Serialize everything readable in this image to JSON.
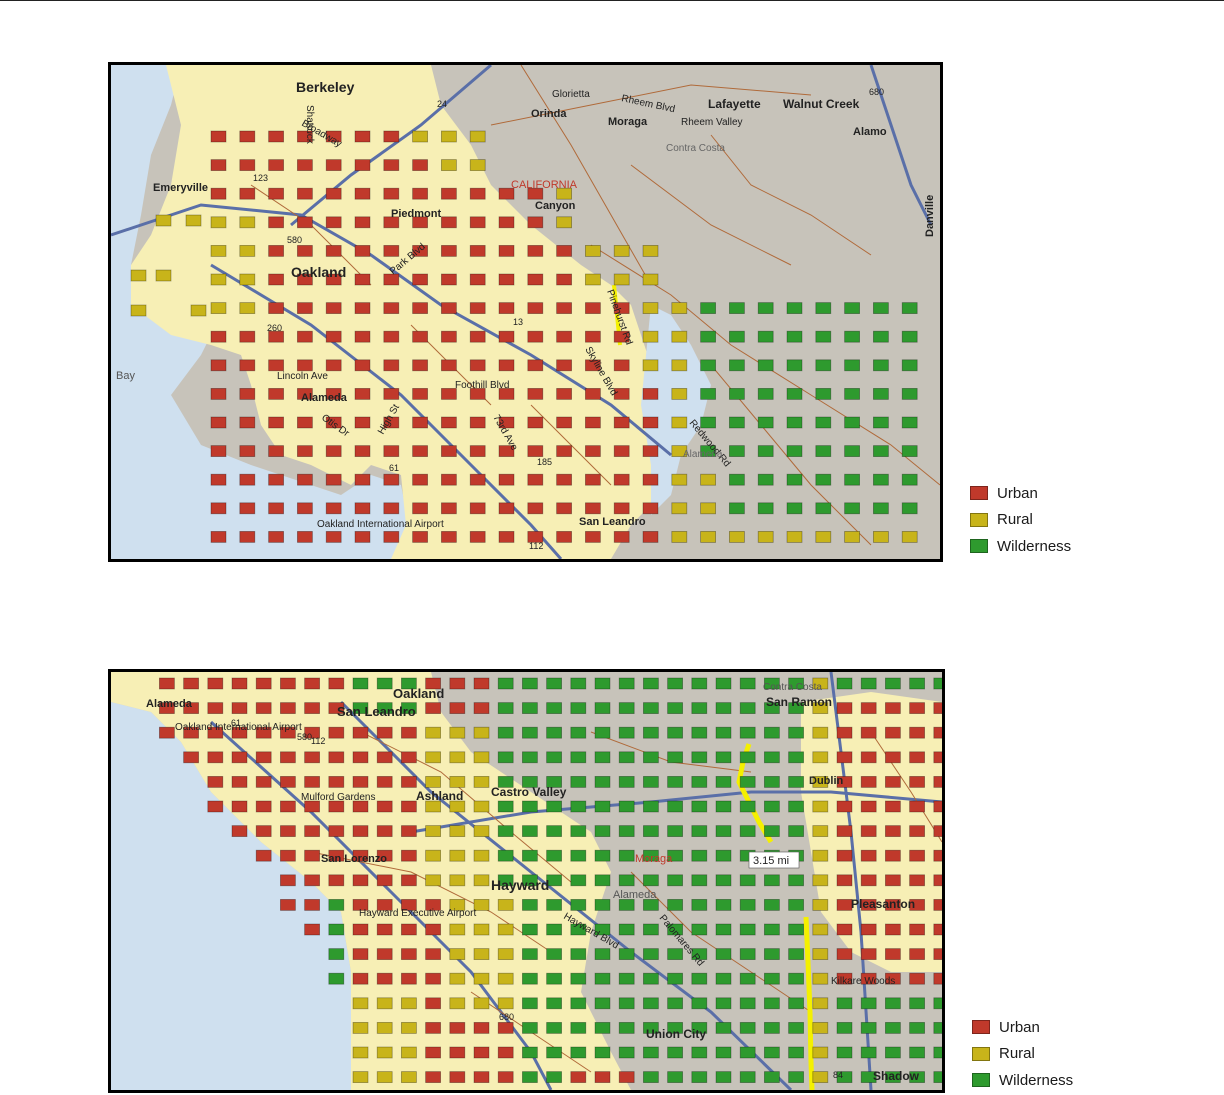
{
  "legend": {
    "items": [
      {
        "label": "Urban",
        "color": "#c0392b"
      },
      {
        "label": "Rural",
        "color": "#c8b41a"
      },
      {
        "label": "Wilderness",
        "color": "#2e9a2e"
      }
    ]
  },
  "colors": {
    "water": "#cfe0ef",
    "land": "#c7c3ba",
    "urban_area": "#f7efb5",
    "road": "#b06a3a",
    "freeway": "#5a6fa8",
    "path_highlight": "#f4f000"
  },
  "map1": {
    "place_labels": [
      "Berkeley",
      "Glorietta",
      "Rheem Blvd",
      "Lafayette",
      "Walnut Creek",
      "Orinda",
      "Moraga",
      "Rheem Valley",
      "Alamo",
      "Contra Costa",
      "CALIFORNIA",
      "Emeryville",
      "Canyon",
      "Piedmont",
      "Danville",
      "Oakland",
      "Bay",
      "Lincoln Ave",
      "Alameda",
      "Otis Dr",
      "Foothill Blvd",
      "San Leandro",
      "Oakland International Airport",
      "Pinehurst Rd",
      "Skyline Blvd",
      "Redwood Rd",
      "Alameda",
      "High St",
      "73rd Ave",
      "Park Blvd",
      "Broadway",
      "Shattuck"
    ],
    "shields": [
      "24",
      "123",
      "580",
      "13",
      "260",
      "61",
      "185",
      "112",
      "680"
    ]
  },
  "map2": {
    "place_labels": [
      "Alameda",
      "Oakland",
      "San Leandro",
      "Oakland International Airport",
      "Contra Costa",
      "San Ramon",
      "Ashland",
      "Castro Valley",
      "Hayward",
      "Hayward Executive Airport",
      "San Lorenzo",
      "Alameda",
      "Hayward Blvd",
      "Palomares Rd",
      "Union City",
      "Pleasanton",
      "Kilkare Woods",
      "Dublin",
      "Moraga",
      "Shadow",
      "Mulford Gardens"
    ],
    "measure_label": "3.15 mi",
    "shields": [
      "61",
      "112",
      "580",
      "680",
      "84"
    ]
  }
}
